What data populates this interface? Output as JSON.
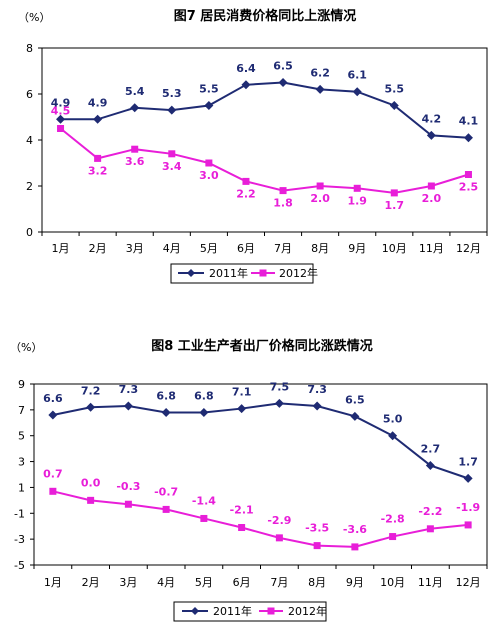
{
  "colors": {
    "series1": "#1f2b73",
    "series2": "#e81ed8"
  },
  "chart_data": [
    {
      "type": "line",
      "title": "图7  居民消费价格同比上涨情况",
      "unit": "（%）",
      "categories": [
        "1月",
        "2月",
        "3月",
        "4月",
        "5月",
        "6月",
        "7月",
        "8月",
        "9月",
        "10月",
        "11月",
        "12月"
      ],
      "ylim": [
        0,
        8
      ],
      "yticks": [
        "0",
        "2",
        "4",
        "6",
        "8"
      ],
      "series": [
        {
          "name": "2011年",
          "values": [
            4.9,
            4.9,
            5.4,
            5.3,
            5.5,
            6.4,
            6.5,
            6.2,
            6.1,
            5.5,
            4.2,
            4.1
          ],
          "labels": [
            "4.9",
            "4.9",
            "5.4",
            "5.3",
            "5.5",
            "6.4",
            "6.5",
            "6.2",
            "6.1",
            "5.5",
            "4.2",
            "4.1"
          ]
        },
        {
          "name": "2012年",
          "values": [
            4.5,
            3.2,
            3.6,
            3.4,
            3.0,
            2.2,
            1.8,
            2.0,
            1.9,
            1.7,
            2.0,
            2.5
          ],
          "labels": [
            "4.5",
            "3.2",
            "3.6",
            "3.4",
            "3.0",
            "2.2",
            "1.8",
            "2.0",
            "1.9",
            "1.7",
            "2.0",
            "2.5"
          ]
        }
      ],
      "legend": "bottom"
    },
    {
      "type": "line",
      "title": "图8  工业生产者出厂价格同比涨跌情况",
      "unit": "（%）",
      "categories": [
        "1月",
        "2月",
        "3月",
        "4月",
        "5月",
        "6月",
        "7月",
        "8月",
        "9月",
        "10月",
        "11月",
        "12月"
      ],
      "ylim": [
        -5,
        9
      ],
      "yticks": [
        "-5",
        "-3",
        "-1",
        "1",
        "3",
        "5",
        "7",
        "9"
      ],
      "series": [
        {
          "name": "2011年",
          "values": [
            6.6,
            7.2,
            7.3,
            6.8,
            6.8,
            7.1,
            7.5,
            7.3,
            6.5,
            5.0,
            2.7,
            1.7
          ],
          "labels": [
            "6.6",
            "7.2",
            "7.3",
            "6.8",
            "6.8",
            "7.1",
            "7.5",
            "7.3",
            "6.5",
            "5.0",
            "2.7",
            "1.7"
          ]
        },
        {
          "name": "2012年",
          "values": [
            0.7,
            0.0,
            -0.3,
            -0.7,
            -1.4,
            -2.1,
            -2.9,
            -3.5,
            -3.6,
            -2.8,
            -2.2,
            -1.9
          ],
          "labels": [
            "0.7",
            "0.0",
            "-0.3",
            "-0.7",
            "-1.4",
            "-2.1",
            "-2.9",
            "-3.5",
            "-3.6",
            "-2.8",
            "-2.2",
            "-1.9"
          ]
        }
      ],
      "legend": "bottom"
    }
  ]
}
